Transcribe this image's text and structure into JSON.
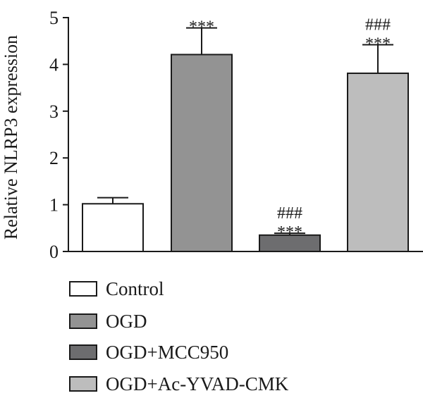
{
  "chart_data": {
    "type": "bar",
    "title": "",
    "xlabel": "",
    "ylabel": "Relative NLRP3 expression",
    "ylim": [
      0,
      5
    ],
    "yticks": [
      0,
      1,
      2,
      3,
      4,
      5
    ],
    "grid": false,
    "legend_position": "bottom",
    "categories": [
      "Control",
      "OGD",
      "OGD+MCC950",
      "OGD+Ac-YVAD-CMK"
    ],
    "values": [
      1.02,
      4.21,
      0.35,
      3.81
    ],
    "errors": [
      0.13,
      0.57,
      0.04,
      0.61
    ],
    "annotations": [
      [],
      [
        "***"
      ],
      [
        "###",
        "***"
      ],
      [
        "###",
        "***"
      ]
    ],
    "colors": [
      "#ffffff",
      "#939393",
      "#6d6d6f",
      "#bdbdbd"
    ],
    "edge_color": "#1a1a1a"
  }
}
